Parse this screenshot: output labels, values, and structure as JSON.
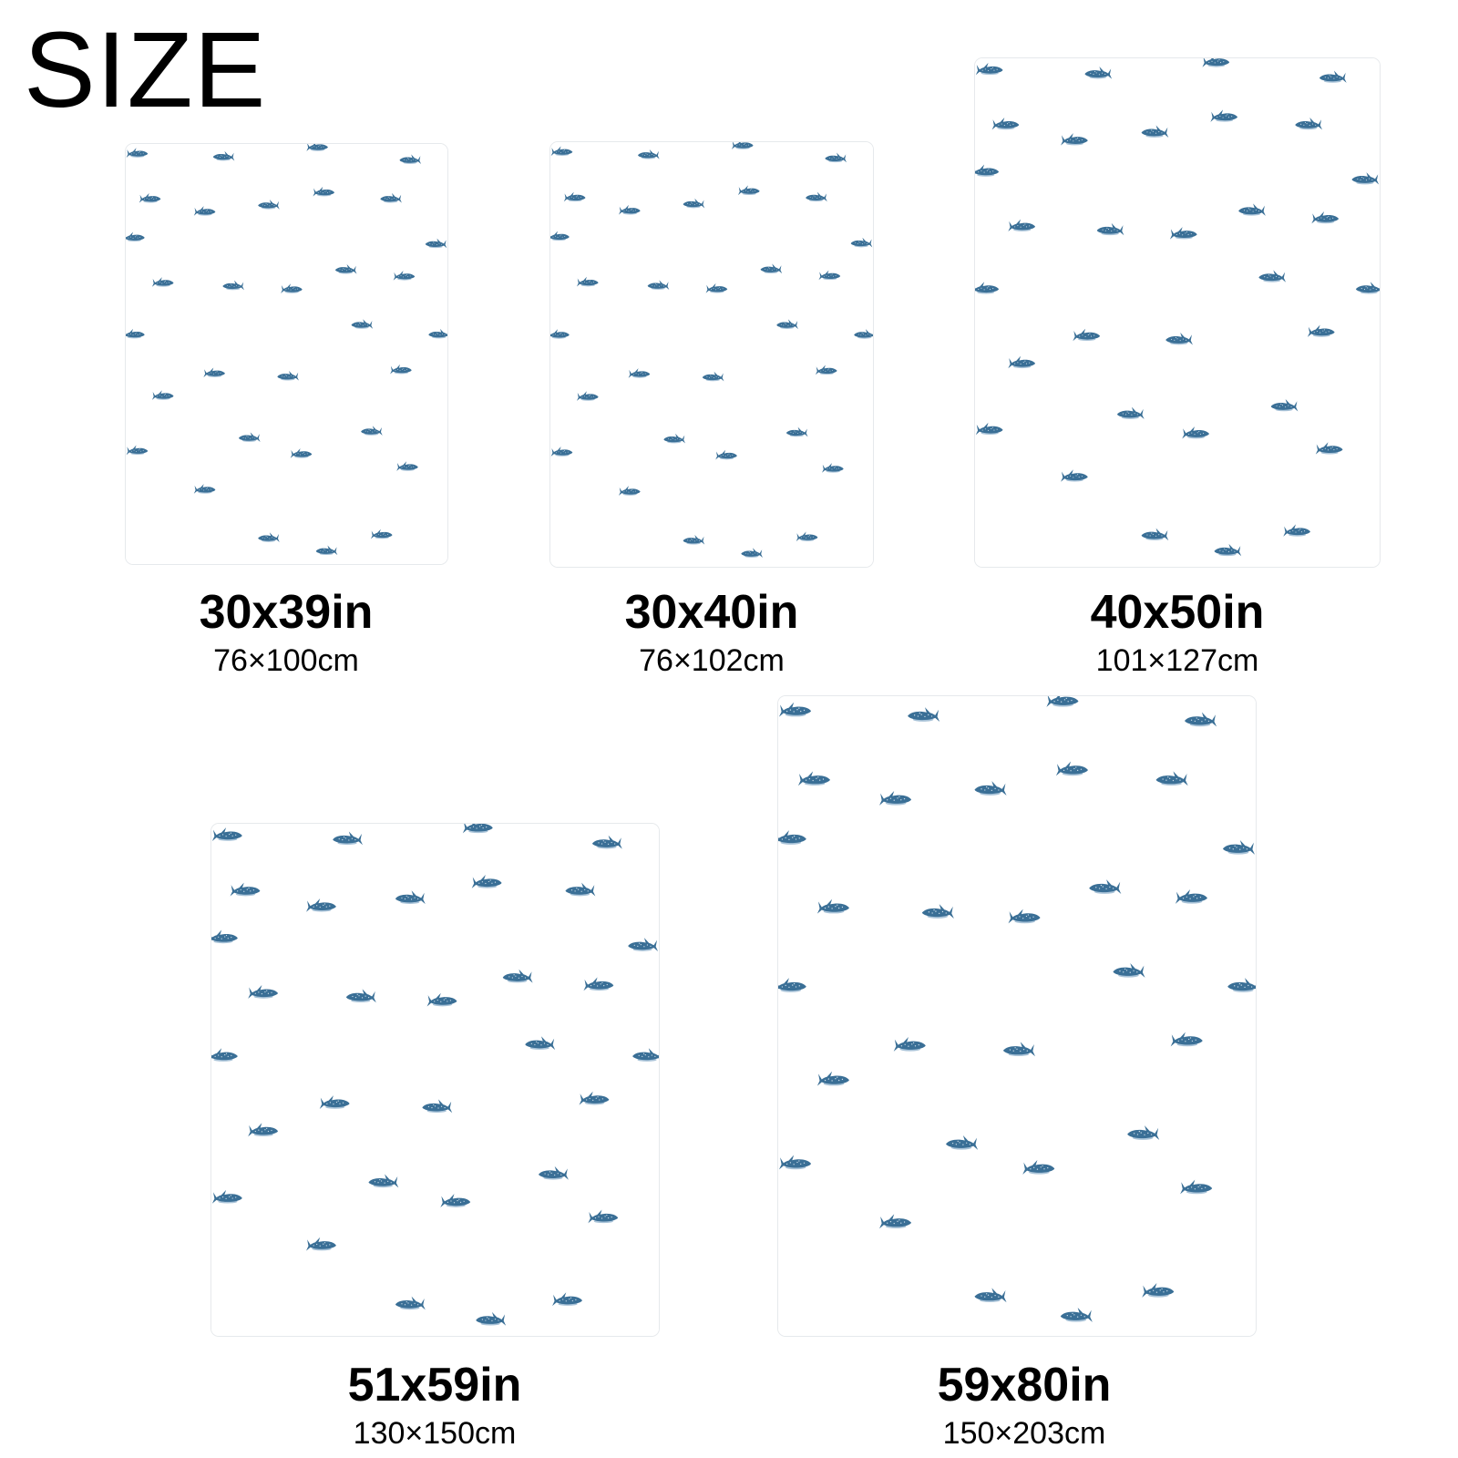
{
  "heading": "SIZE",
  "pattern": {
    "motif": "whale-shark-icon",
    "shark_color": "#3a6f96",
    "spot_color": "#cfe0ec",
    "shadow_color": "#a9c3d8",
    "background": "#ffffff"
  },
  "sizes": [
    {
      "inches": "30x39in",
      "centimeters": "76×100cm"
    },
    {
      "inches": "30x40in",
      "centimeters": "76×102cm"
    },
    {
      "inches": "40x50in",
      "centimeters": "101×127cm"
    },
    {
      "inches": "51x59in",
      "centimeters": "130×150cm"
    },
    {
      "inches": "59x80in",
      "centimeters": "150×203cm"
    }
  ]
}
